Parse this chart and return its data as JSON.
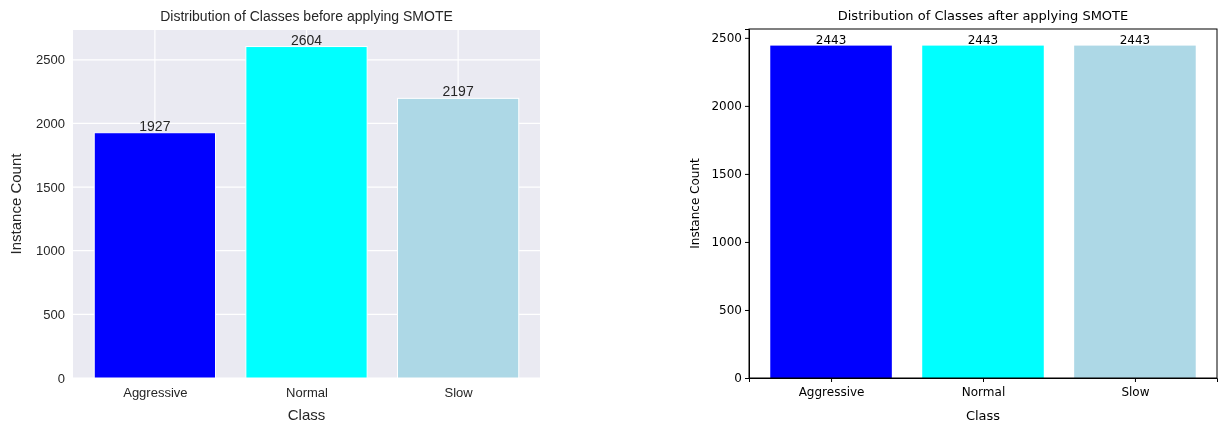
{
  "chart_data": [
    {
      "type": "bar",
      "title": "Distribution of Classes before applying SMOTE",
      "xlabel": "Class",
      "ylabel": "Instance Count",
      "categories": [
        "Aggressive",
        "Normal",
        "Slow"
      ],
      "values": [
        1927,
        2604,
        2197
      ],
      "colors": [
        "#0000ff",
        "#00ffff",
        "#add8e6"
      ],
      "ylim": [
        0,
        2734
      ],
      "yticks": [
        0,
        500,
        1000,
        1500,
        2000,
        2500
      ],
      "grid": true,
      "data_labels": true
    },
    {
      "type": "bar",
      "title": "Distribution of Classes after applying SMOTE",
      "xlabel": "Class",
      "ylabel": "Instance Count",
      "categories": [
        "Aggressive",
        "Normal",
        "Slow"
      ],
      "values": [
        2443,
        2443,
        2443
      ],
      "colors": [
        "#0000ff",
        "#00ffff",
        "#add8e6"
      ],
      "ylim": [
        0,
        2565
      ],
      "yticks": [
        0,
        500,
        1000,
        1500,
        2000,
        2500
      ],
      "data_labels": true
    }
  ]
}
